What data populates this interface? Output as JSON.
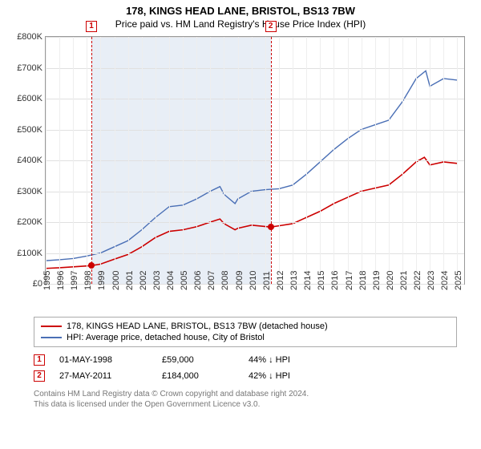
{
  "title": "178, KINGS HEAD LANE, BRISTOL, BS13 7BW",
  "subtitle": "Price paid vs. HM Land Registry's House Price Index (HPI)",
  "chart": {
    "type": "line",
    "ylim": [
      0,
      800000
    ],
    "ytick_step": 100000,
    "ytick_labels": [
      "£0",
      "£100K",
      "£200K",
      "£300K",
      "£400K",
      "£500K",
      "£600K",
      "£700K",
      "£800K"
    ],
    "x_years": [
      1995,
      1996,
      1997,
      1998,
      1999,
      2000,
      2001,
      2002,
      2003,
      2004,
      2005,
      2006,
      2007,
      2008,
      2009,
      2010,
      2011,
      2012,
      2013,
      2014,
      2015,
      2016,
      2017,
      2018,
      2019,
      2020,
      2021,
      2022,
      2023,
      2024,
      2025
    ],
    "xlim": [
      1995,
      2025.5
    ],
    "background_color": "#ffffff",
    "grid_color": "#e0e0e0",
    "shade_color": "#e8eef6",
    "shade_range": [
      1998.33,
      2011.4
    ],
    "series": [
      {
        "name": "property",
        "label": "178, KINGS HEAD LANE, BRISTOL, BS13 7BW (detached house)",
        "color": "#cc0000",
        "line_width": 1.6,
        "data": [
          [
            1995,
            50000
          ],
          [
            1996,
            52000
          ],
          [
            1997,
            55000
          ],
          [
            1998.33,
            59000
          ],
          [
            1999,
            64000
          ],
          [
            2000,
            80000
          ],
          [
            2001,
            95000
          ],
          [
            2002,
            120000
          ],
          [
            2003,
            150000
          ],
          [
            2004,
            170000
          ],
          [
            2005,
            175000
          ],
          [
            2006,
            185000
          ],
          [
            2007,
            200000
          ],
          [
            2007.7,
            210000
          ],
          [
            2008,
            195000
          ],
          [
            2008.8,
            175000
          ],
          [
            2009,
            180000
          ],
          [
            2010,
            190000
          ],
          [
            2011.4,
            184000
          ],
          [
            2012,
            188000
          ],
          [
            2013,
            195000
          ],
          [
            2014,
            215000
          ],
          [
            2015,
            235000
          ],
          [
            2016,
            260000
          ],
          [
            2017,
            280000
          ],
          [
            2018,
            300000
          ],
          [
            2019,
            310000
          ],
          [
            2020,
            320000
          ],
          [
            2021,
            355000
          ],
          [
            2022,
            395000
          ],
          [
            2022.6,
            410000
          ],
          [
            2023,
            385000
          ],
          [
            2024,
            395000
          ],
          [
            2025,
            390000
          ]
        ]
      },
      {
        "name": "hpi",
        "label": "HPI: Average price, detached house, City of Bristol",
        "color": "#4a6fb5",
        "line_width": 1.4,
        "data": [
          [
            1995,
            75000
          ],
          [
            1996,
            78000
          ],
          [
            1997,
            82000
          ],
          [
            1998,
            90000
          ],
          [
            1999,
            100000
          ],
          [
            2000,
            120000
          ],
          [
            2001,
            140000
          ],
          [
            2002,
            175000
          ],
          [
            2003,
            215000
          ],
          [
            2004,
            250000
          ],
          [
            2005,
            255000
          ],
          [
            2006,
            275000
          ],
          [
            2007,
            300000
          ],
          [
            2007.7,
            315000
          ],
          [
            2008,
            290000
          ],
          [
            2008.8,
            260000
          ],
          [
            2009,
            275000
          ],
          [
            2010,
            300000
          ],
          [
            2011,
            305000
          ],
          [
            2012,
            308000
          ],
          [
            2013,
            320000
          ],
          [
            2014,
            355000
          ],
          [
            2015,
            395000
          ],
          [
            2016,
            435000
          ],
          [
            2017,
            470000
          ],
          [
            2018,
            500000
          ],
          [
            2019,
            515000
          ],
          [
            2020,
            530000
          ],
          [
            2021,
            590000
          ],
          [
            2022,
            665000
          ],
          [
            2022.7,
            690000
          ],
          [
            2023,
            640000
          ],
          [
            2024,
            665000
          ],
          [
            2025,
            660000
          ]
        ]
      }
    ],
    "events": [
      {
        "n": "1",
        "x": 1998.33,
        "date": "01-MAY-1998",
        "price": "£59,000",
        "diff": "44% ↓ HPI",
        "point_y": 59000,
        "point_color": "#cc0000"
      },
      {
        "n": "2",
        "x": 2011.4,
        "date": "27-MAY-2011",
        "price": "£184,000",
        "diff": "42% ↓ HPI",
        "point_y": 184000,
        "point_color": "#cc0000"
      }
    ]
  },
  "footer": {
    "line1": "Contains HM Land Registry data © Crown copyright and database right 2024.",
    "line2": "This data is licensed under the Open Government Licence v3.0."
  }
}
